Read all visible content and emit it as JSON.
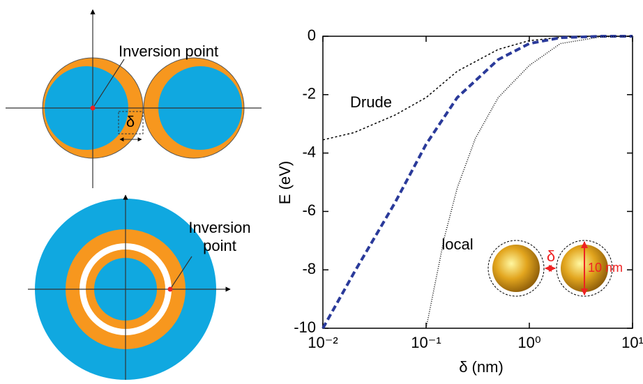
{
  "diagrams": {
    "top_label": "Inversion point",
    "gap_label": "δ",
    "bottom_label": [
      "Inversion",
      "point"
    ]
  },
  "inset": {
    "gap_label": "δ",
    "size_label": "10 nm"
  },
  "chart_data": {
    "type": "line",
    "xscale": "log",
    "xlabel": "δ (nm)",
    "ylabel": "E (eV)",
    "xlim": [
      0.01,
      10
    ],
    "ylim": [
      -10,
      0
    ],
    "xticks": [
      {
        "value": 0.01,
        "label": "10⁻²"
      },
      {
        "value": 0.1,
        "label": "10⁻¹"
      },
      {
        "value": 1,
        "label": "10⁰"
      },
      {
        "value": 10,
        "label": "10¹"
      }
    ],
    "yticks": [
      0,
      -2,
      -4,
      -6,
      -8,
      -10
    ],
    "series": [
      {
        "name": "Drude",
        "color": "#000000",
        "dash": "3,3",
        "x": [
          0.01,
          0.02,
          0.05,
          0.1,
          0.2,
          0.5,
          1,
          2,
          5,
          10
        ],
        "values": [
          -3.55,
          -3.3,
          -2.7,
          -2.1,
          -1.2,
          -0.45,
          -0.15,
          -0.04,
          0,
          0
        ]
      },
      {
        "color": "#2a3a9a",
        "dash": "9,5",
        "x": [
          0.01,
          0.02,
          0.05,
          0.1,
          0.2,
          0.5,
          1,
          2,
          5,
          10
        ],
        "values": [
          -10,
          -8.1,
          -5.7,
          -3.7,
          -2.1,
          -0.8,
          -0.25,
          -0.05,
          0,
          0
        ]
      },
      {
        "name": "local",
        "color": "#000000",
        "dash": "1,2",
        "x": [
          0.1,
          0.15,
          0.2,
          0.3,
          0.5,
          1,
          2,
          5,
          10
        ],
        "values": [
          -10,
          -6.9,
          -5.2,
          -3.5,
          -2.1,
          -1.0,
          -0.25,
          -0.02,
          0
        ]
      }
    ]
  }
}
